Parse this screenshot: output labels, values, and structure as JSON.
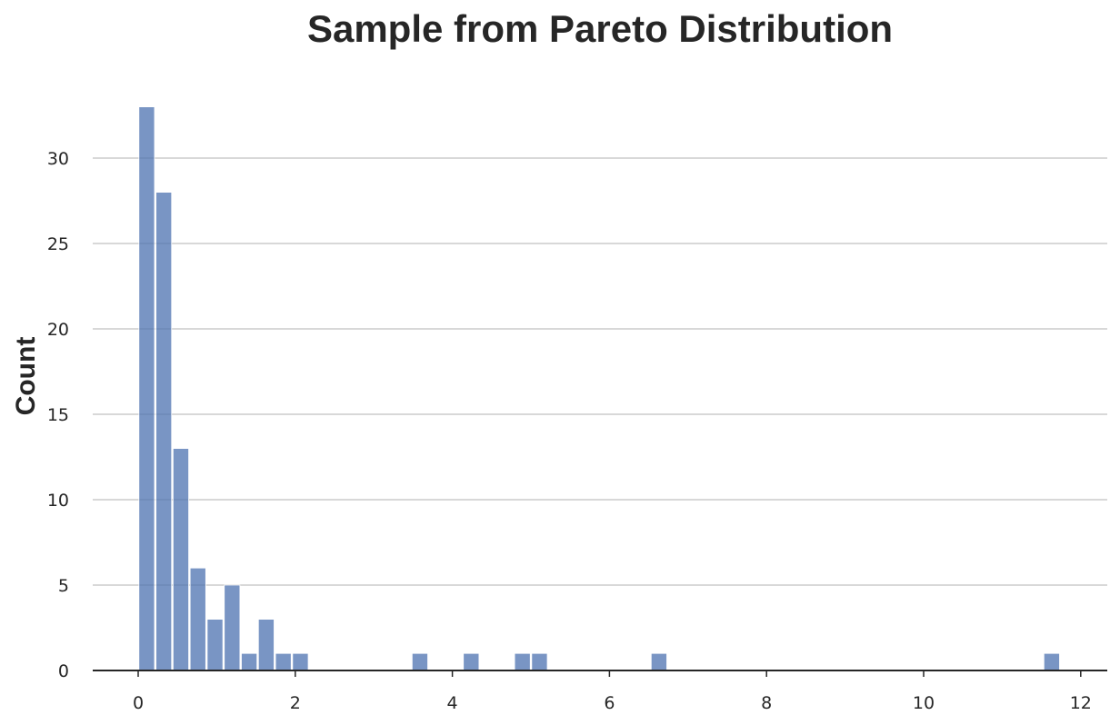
{
  "chart_data": {
    "type": "bar",
    "title": "Sample from Pareto Distribution",
    "xlabel": "",
    "ylabel": "Count",
    "xlim": [
      -0.6,
      12.35
    ],
    "ylim": [
      0,
      33
    ],
    "grid": "horizontal",
    "bar_color": "#4c72b0",
    "bin_width": 0.2174,
    "bins": [
      {
        "start": 0.0,
        "count": 33
      },
      {
        "start": 0.2174,
        "count": 28
      },
      {
        "start": 0.4348,
        "count": 13
      },
      {
        "start": 0.6522,
        "count": 6
      },
      {
        "start": 0.8696,
        "count": 3
      },
      {
        "start": 1.087,
        "count": 5
      },
      {
        "start": 1.3044,
        "count": 1
      },
      {
        "start": 1.5218,
        "count": 3
      },
      {
        "start": 1.7392,
        "count": 1
      },
      {
        "start": 1.9566,
        "count": 1
      },
      {
        "start": 3.4784,
        "count": 1
      },
      {
        "start": 4.131,
        "count": 1
      },
      {
        "start": 4.7832,
        "count": 1
      },
      {
        "start": 5.0006,
        "count": 1
      },
      {
        "start": 6.522,
        "count": 1
      },
      {
        "start": 11.522,
        "count": 1
      }
    ],
    "x_ticks": [
      0,
      2,
      4,
      6,
      8,
      10,
      12
    ],
    "y_ticks": [
      0,
      5,
      10,
      15,
      20,
      25,
      30
    ]
  }
}
